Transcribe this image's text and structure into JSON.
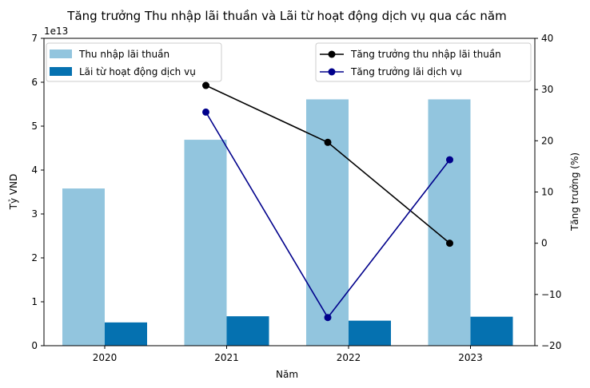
{
  "chart_data": {
    "type": "bar",
    "title": "Tăng trưởng Thu nhập lãi thuần và Lãi từ hoạt động dịch vụ qua các năm",
    "xlabel": "Năm",
    "ylabel": "Tỷ VND",
    "y2label": "Tăng trưởng (%)",
    "y_offset_label": "1e13",
    "categories": [
      "2020",
      "2021",
      "2022",
      "2023"
    ],
    "ylim": [
      0,
      7
    ],
    "y_ticks": [
      "0",
      "1",
      "2",
      "3",
      "4",
      "5",
      "6",
      "7"
    ],
    "y2lim": [
      -20,
      40
    ],
    "y2_ticks": [
      "−20",
      "−10",
      "0",
      "10",
      "20",
      "30",
      "40"
    ],
    "grid": false,
    "bar_series": [
      {
        "name": "Thu nhập lãi thuần",
        "color": "#92c5de",
        "values": [
          3.58,
          4.69,
          5.61,
          5.61
        ]
      },
      {
        "name": "Lãi từ hoạt động dịch vụ",
        "color": "#0571b0",
        "values": [
          0.53,
          0.67,
          0.57,
          0.66
        ]
      }
    ],
    "line_series": [
      {
        "name": "Tăng trưởng thu nhập lãi thuần",
        "color": "#000000",
        "x_index": [
          1,
          2,
          3
        ],
        "values": [
          30.8,
          19.7,
          0.0
        ]
      },
      {
        "name": "Tăng trưởng lãi dịch vụ",
        "color": "#00008b",
        "x_index": [
          1,
          2,
          3
        ],
        "values": [
          25.6,
          -14.5,
          16.3
        ]
      }
    ],
    "legend_left_placement": "upper-left",
    "legend_right_placement": "upper-right"
  }
}
